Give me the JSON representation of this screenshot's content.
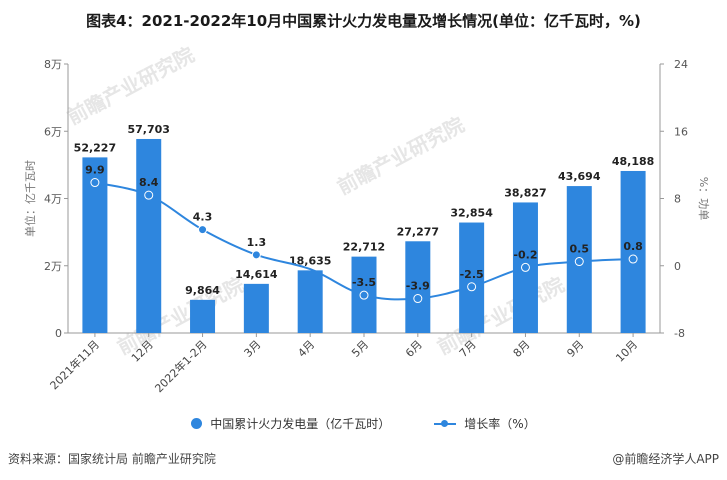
{
  "title": "图表4：2021-2022年10月中国累计火力发电量及增长情况(单位：亿千瓦时，%)",
  "footer": {
    "source": "资料来源：国家统计局 前瞻产业研究院",
    "brand": "@前瞻经济学人APP"
  },
  "watermark": "前瞻产业研究院",
  "legend": {
    "bar": "中国累计火力发电量（亿千瓦时）",
    "line": "增长率（%）"
  },
  "colors": {
    "bar": "#2e86de",
    "line": "#2e86de",
    "axis": "#999999"
  },
  "chart_data": {
    "type": "bar",
    "title": "图表4：2021-2022年10月中国累计火力发电量及增长情况(单位：亿千瓦时，%)",
    "categories": [
      "2021年11月",
      "12月",
      "2022年1-2月",
      "3月",
      "4月",
      "5月",
      "6月",
      "7月",
      "8月",
      "9月",
      "10月"
    ],
    "series": [
      {
        "name": "中国累计火力发电量（亿千瓦时）",
        "type": "bar",
        "axis": "left",
        "values": [
          52227,
          57703,
          9864,
          14614,
          18635,
          22712,
          27277,
          32854,
          38827,
          43694,
          48188
        ],
        "labels": [
          "52,227",
          "57,703",
          "9,864",
          "14,614",
          "18,635",
          "22,712",
          "27,277",
          "32,854",
          "38,827",
          "43,694",
          "48,188"
        ]
      },
      {
        "name": "增长率（%）",
        "type": "line",
        "axis": "right",
        "values": [
          9.9,
          8.4,
          4.3,
          1.3,
          -0.4,
          -3.5,
          -3.9,
          -2.5,
          -0.2,
          0.5,
          0.8
        ],
        "labels": [
          "9.9",
          "8.4",
          "4.3",
          "1.3",
          "",
          "-3.5",
          "-3.9",
          "-2.5",
          "-0.2",
          "0.5",
          "0.8"
        ]
      }
    ],
    "ylabel_left": "单位：亿千瓦时",
    "ylabel_right": "%：功单",
    "ylim_left": [
      0,
      80000
    ],
    "ylim_right": [
      -8,
      24
    ],
    "yticks_left": [
      "0",
      "2万",
      "4万",
      "6万",
      "8万"
    ],
    "yticks_right": [
      "-8",
      "0",
      "8",
      "16",
      "24"
    ],
    "grid": false,
    "legend_position": "bottom"
  }
}
